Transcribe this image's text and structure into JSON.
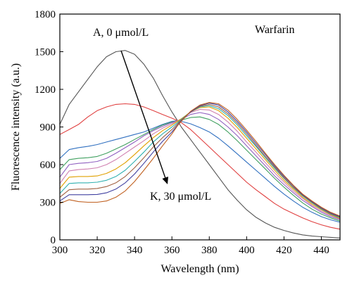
{
  "chart_data": {
    "type": "line",
    "xlabel": "Wavelength (nm)",
    "ylabel": "Fluorescence intensity (a.u.)",
    "xlim": [
      300,
      450
    ],
    "ylim": [
      0,
      1800
    ],
    "xticks": [
      300,
      320,
      340,
      360,
      380,
      400,
      420,
      440
    ],
    "yticks": [
      0,
      300,
      600,
      900,
      1200,
      1500,
      1800
    ],
    "grid": false,
    "legend": "none",
    "annotations": {
      "drug": "Warfarin",
      "start_label": "A, 0 μmol/L",
      "end_label": "K, 30 μmol/L"
    },
    "x": [
      300,
      305,
      310,
      315,
      320,
      325,
      330,
      335,
      340,
      345,
      350,
      355,
      360,
      363,
      365,
      370,
      375,
      380,
      385,
      390,
      395,
      400,
      405,
      410,
      415,
      420,
      425,
      430,
      435,
      440,
      445,
      450
    ],
    "series": [
      {
        "color": "#555555",
        "values": [
          920,
          1080,
          1180,
          1280,
          1380,
          1460,
          1500,
          1510,
          1480,
          1400,
          1290,
          1150,
          1020,
          950,
          900,
          800,
          700,
          600,
          500,
          400,
          315,
          240,
          180,
          135,
          100,
          75,
          55,
          40,
          30,
          25,
          20,
          15
        ]
      },
      {
        "color": "#e04040",
        "values": [
          840,
          880,
          920,
          980,
          1030,
          1060,
          1080,
          1085,
          1080,
          1060,
          1030,
          1000,
          970,
          950,
          935,
          880,
          810,
          740,
          670,
          600,
          530,
          460,
          400,
          345,
          290,
          245,
          210,
          175,
          145,
          120,
          100,
          85
        ]
      },
      {
        "color": "#3070c0",
        "values": [
          650,
          720,
          735,
          745,
          760,
          780,
          800,
          820,
          840,
          860,
          890,
          920,
          945,
          950,
          945,
          925,
          895,
          860,
          810,
          750,
          685,
          620,
          555,
          490,
          425,
          365,
          310,
          260,
          220,
          185,
          160,
          140
        ]
      },
      {
        "color": "#40a060",
        "values": [
          560,
          640,
          650,
          655,
          665,
          690,
          725,
          760,
          800,
          840,
          880,
          915,
          940,
          950,
          955,
          975,
          980,
          960,
          920,
          860,
          790,
          715,
          640,
          565,
          490,
          420,
          355,
          295,
          245,
          205,
          175,
          150
        ]
      },
      {
        "color": "#9060c0",
        "values": [
          500,
          600,
          610,
          615,
          625,
          650,
          690,
          735,
          780,
          830,
          870,
          905,
          935,
          950,
          960,
          1000,
          1015,
          1000,
          960,
          900,
          830,
          750,
          670,
          590,
          510,
          440,
          375,
          315,
          265,
          220,
          185,
          160
        ]
      },
      {
        "color": "#d080b0",
        "values": [
          450,
          550,
          560,
          565,
          575,
          600,
          640,
          690,
          740,
          790,
          845,
          890,
          925,
          950,
          965,
          1015,
          1040,
          1035,
          1000,
          940,
          865,
          780,
          700,
          615,
          535,
          460,
          390,
          330,
          275,
          230,
          195,
          165
        ]
      },
      {
        "color": "#e0a000",
        "values": [
          410,
          500,
          505,
          505,
          510,
          530,
          565,
          615,
          680,
          750,
          815,
          870,
          915,
          945,
          965,
          1020,
          1055,
          1060,
          1030,
          970,
          895,
          810,
          725,
          640,
          555,
          475,
          405,
          340,
          285,
          240,
          200,
          170
        ]
      },
      {
        "color": "#30b0b0",
        "values": [
          370,
          450,
          455,
          455,
          460,
          475,
          505,
          555,
          625,
          700,
          780,
          845,
          900,
          935,
          960,
          1020,
          1060,
          1070,
          1045,
          990,
          915,
          830,
          745,
          655,
          570,
          490,
          415,
          350,
          295,
          245,
          205,
          175
        ]
      },
      {
        "color": "#a06040",
        "values": [
          340,
          400,
          405,
          405,
          410,
          425,
          455,
          505,
          575,
          655,
          740,
          815,
          880,
          925,
          955,
          1020,
          1065,
          1080,
          1060,
          1005,
          930,
          845,
          755,
          665,
          580,
          495,
          420,
          355,
          300,
          250,
          210,
          180
        ]
      },
      {
        "color": "#4040a0",
        "values": [
          310,
          360,
          360,
          360,
          362,
          375,
          405,
          455,
          525,
          610,
          700,
          785,
          860,
          915,
          950,
          1020,
          1070,
          1090,
          1075,
          1020,
          945,
          860,
          770,
          680,
          590,
          505,
          430,
          360,
          305,
          255,
          215,
          185
        ]
      },
      {
        "color": "#c06020",
        "values": [
          290,
          320,
          305,
          300,
          300,
          310,
          340,
          390,
          465,
          555,
          650,
          750,
          845,
          910,
          945,
          1025,
          1075,
          1095,
          1085,
          1035,
          960,
          875,
          785,
          690,
          600,
          515,
          435,
          365,
          310,
          260,
          220,
          190
        ]
      }
    ]
  }
}
